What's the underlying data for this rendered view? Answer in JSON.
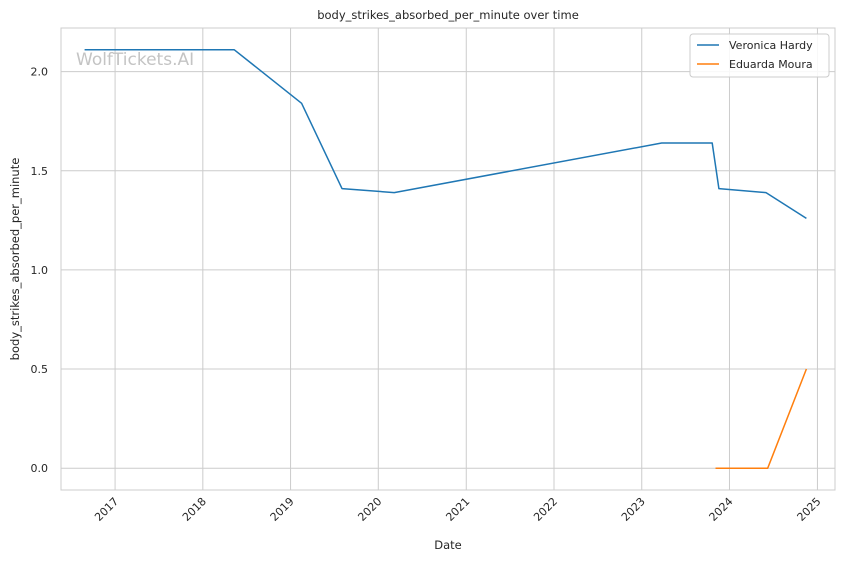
{
  "chart_data": {
    "type": "line",
    "title": "body_strikes_absorbed_per_minute over time",
    "xlabel": "Date",
    "ylabel": "body_strikes_absorbed_per_minute",
    "watermark": "WolfTickets.AI",
    "x_ticks": [
      "2017",
      "2018",
      "2019",
      "2020",
      "2021",
      "2022",
      "2023",
      "2024",
      "2025"
    ],
    "y_ticks": [
      "0.0",
      "0.5",
      "1.0",
      "1.5",
      "2.0"
    ],
    "ylim": [
      -0.11,
      2.22
    ],
    "xlim": [
      "2016-05-21",
      "2025-03-15"
    ],
    "grid": true,
    "legend_position": "top-right",
    "series": [
      {
        "name": "Veronica Hardy",
        "color": "#1f77b4",
        "points": [
          {
            "x": "2016-08-27",
            "y": 2.11
          },
          {
            "x": "2018-05-12",
            "y": 2.11
          },
          {
            "x": "2019-02-16",
            "y": 1.84
          },
          {
            "x": "2019-08-03",
            "y": 1.41
          },
          {
            "x": "2020-03-07",
            "y": 1.39
          },
          {
            "x": "2023-03-25",
            "y": 1.64
          },
          {
            "x": "2023-10-21",
            "y": 1.64
          },
          {
            "x": "2023-11-18",
            "y": 1.41
          },
          {
            "x": "2024-06-01",
            "y": 1.39
          },
          {
            "x": "2024-11-16",
            "y": 1.26
          }
        ]
      },
      {
        "name": "Eduarda Moura",
        "color": "#ff7f0e",
        "points": [
          {
            "x": "2023-11-04",
            "y": 0.0
          },
          {
            "x": "2024-06-08",
            "y": 0.0
          },
          {
            "x": "2024-11-16",
            "y": 0.5
          }
        ]
      }
    ]
  }
}
